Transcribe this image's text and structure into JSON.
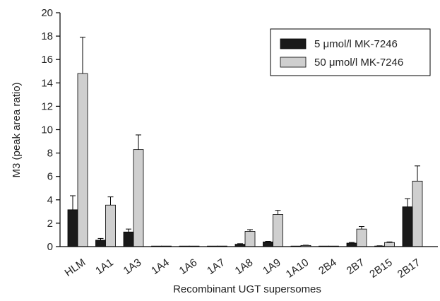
{
  "chart_data": {
    "type": "bar",
    "xlabel": "Recombinant UGT supersomes",
    "ylabel": "M3 (peak area ratio)",
    "ylim": [
      0,
      20
    ],
    "yticks": [
      0,
      2,
      4,
      6,
      8,
      10,
      12,
      14,
      16,
      18,
      20
    ],
    "categories": [
      "HLM",
      "1A1",
      "1A3",
      "1A4",
      "1A6",
      "1A7",
      "1A8",
      "1A9",
      "1A10",
      "2B4",
      "2B7",
      "2B15",
      "2B17"
    ],
    "legend_position": "top-right",
    "series": [
      {
        "name": "5 μmol/l MK-7246",
        "color": "#1a1a1a",
        "values": [
          3.15,
          0.55,
          1.25,
          0.0,
          0.0,
          0.02,
          0.2,
          0.4,
          0.02,
          0.0,
          0.3,
          0.05,
          3.4
        ],
        "errors": [
          1.2,
          0.15,
          0.25,
          0.0,
          0.0,
          0.0,
          0.05,
          0.05,
          0.0,
          0.0,
          0.05,
          0.02,
          0.7
        ]
      },
      {
        "name": "50 μmol/l MK-7246",
        "color": "#cfcfcf",
        "values": [
          14.8,
          3.55,
          8.3,
          0.05,
          0.03,
          0.05,
          1.3,
          2.75,
          0.1,
          0.03,
          1.5,
          0.35,
          5.6
        ],
        "errors": [
          3.1,
          0.7,
          1.25,
          0.0,
          0.0,
          0.0,
          0.15,
          0.35,
          0.02,
          0.0,
          0.22,
          0.05,
          1.3
        ]
      }
    ]
  }
}
